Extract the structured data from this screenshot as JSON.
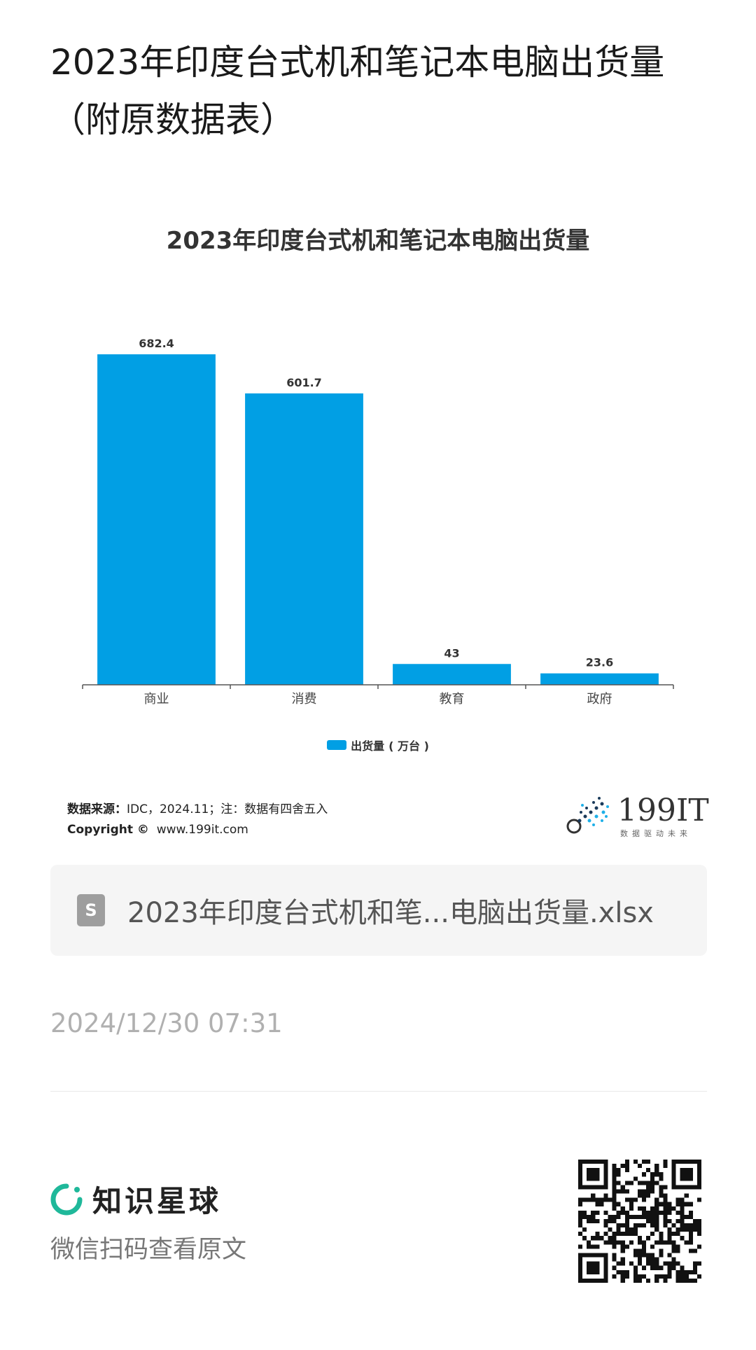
{
  "page": {
    "title": "2023年印度台式机和笔记本电脑出货量（附原数据表）"
  },
  "chart_data": {
    "type": "bar",
    "title": "2023年印度台式机和笔记本电脑出货量",
    "categories": [
      "商业",
      "消费",
      "教育",
      "政府"
    ],
    "series": [
      {
        "name": "出货量（万台）",
        "values": [
          682.4,
          601.7,
          43,
          23.6
        ]
      }
    ],
    "data_labels": [
      "682.4",
      "601.7",
      "43",
      "23.6"
    ],
    "ylim": [
      0,
      682.4
    ],
    "grid": false,
    "legend_position": "bottom",
    "color": "#019fe4"
  },
  "legend": {
    "label_main": "出货量",
    "label_unit": "万台"
  },
  "source": {
    "label": "数据来源：",
    "text": "IDC，2024.11；注：数据有四舍五入",
    "copyright_label": "Copyright ©",
    "copyright_url": "www.199it.com"
  },
  "logo": {
    "text": "199IT",
    "tagline": "数据驱动未来"
  },
  "file": {
    "icon_letter": "S",
    "name": "2023年印度台式机和笔...电脑出货量.xlsx"
  },
  "timestamp": "2024/12/30 07:31",
  "footer": {
    "brand_name": "知识星球",
    "scan_text": "微信扫码查看原文"
  },
  "colors": {
    "bar": "#019fe4",
    "brand_green": "#1fb89a"
  },
  "icons": {
    "file": "spreadsheet-file-icon",
    "brand": "zsxq-ring-icon",
    "qr": "qr-code-icon"
  }
}
